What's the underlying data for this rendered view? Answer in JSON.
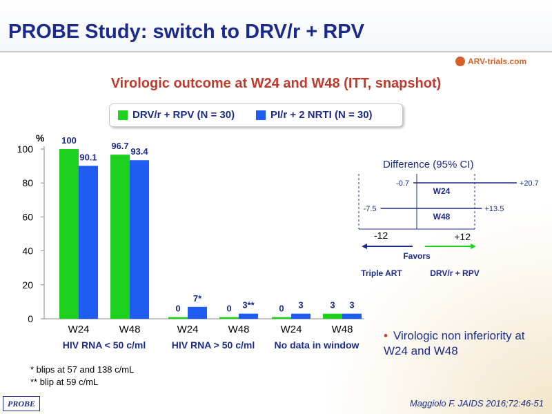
{
  "slide": {
    "title": "PROBE Study: switch to DRV/r + RPV",
    "subtitle": "Virologic outcome at W24 and W48 (ITT, snapshot)",
    "logo_text": "ARV-trials.com",
    "footnotes": [
      "* blips at 57 and 138 c/mL",
      "** blip at 59 c/mL"
    ],
    "probe_tag": "PROBE",
    "citation": "Maggiolo F. JAIDS 2016;72:46-51",
    "bullet": "Virologic non inferiority at W24 and W48",
    "colors": {
      "title": "#1a2b8c",
      "accent": "#c0392b",
      "green": "#1fd11f",
      "blue": "#1f5cf2"
    }
  },
  "chart_data": {
    "type": "bar",
    "ylabel": "%",
    "ylim": [
      0,
      100
    ],
    "yticks": [
      0,
      20,
      40,
      60,
      80,
      100
    ],
    "series": [
      {
        "name": "DRV/r + RPV (N = 30)",
        "color": "#1fd11f"
      },
      {
        "name": "PI/r + 2 NRTI (N = 30)",
        "color": "#1f5cf2"
      }
    ],
    "groups": [
      {
        "label": "HIV RNA < 50 c/ml",
        "timepoints": [
          {
            "label": "W24",
            "values": [
              100,
              90.1
            ],
            "value_labels": [
              "100",
              "90.1"
            ]
          },
          {
            "label": "W48",
            "values": [
              96.7,
              93.4
            ],
            "value_labels": [
              "96.7",
              "93.4"
            ]
          }
        ]
      },
      {
        "label": "HIV RNA > 50 c/ml",
        "timepoints": [
          {
            "label": "W24",
            "values": [
              0,
              7
            ],
            "value_labels": [
              "0",
              "7*"
            ]
          },
          {
            "label": "W48",
            "values": [
              0,
              3
            ],
            "value_labels": [
              "0",
              "3**"
            ]
          }
        ]
      },
      {
        "label": "No data in window",
        "timepoints": [
          {
            "label": "W24",
            "values": [
              0,
              3
            ],
            "value_labels": [
              "0",
              "3"
            ]
          },
          {
            "label": "W48",
            "values": [
              3,
              3
            ],
            "value_labels": [
              "3",
              "3"
            ]
          }
        ]
      }
    ]
  },
  "ci_chart": {
    "title": "Difference (95% CI)",
    "rows": [
      {
        "label": "W24",
        "lower_label": "-0.7",
        "upper_label": "+20.7",
        "lower": -0.7,
        "upper": 20.7
      },
      {
        "label": "W48",
        "lower_label": "-7.5",
        "upper_label": "+13.5",
        "lower": -7.5,
        "upper": 13.5
      }
    ],
    "margin_lower": -12,
    "margin_upper": 12,
    "margin_lower_label": "-12",
    "margin_upper_label": "+12",
    "favors_label": "Favors",
    "favors_left": "Triple ART",
    "favors_right": "DRV/r + RPV"
  }
}
